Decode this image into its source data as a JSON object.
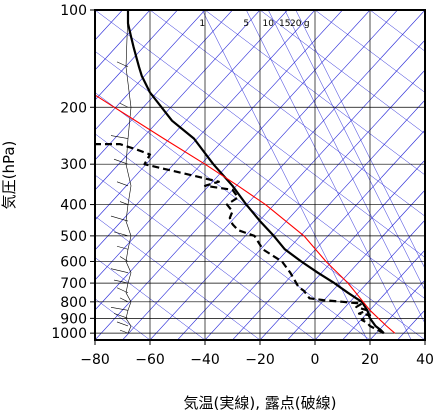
{
  "chart_data": {
    "type": "line",
    "title": "",
    "xlabel": "気温(実線), 露点(破線)",
    "ylabel": "気圧(hPa)",
    "xlim": [
      -80,
      40
    ],
    "ylim_hpa": [
      1050,
      100
    ],
    "y_scale": "log",
    "x_ticks": [
      "−80",
      "−60",
      "−40",
      "−20",
      "0",
      "20",
      "40"
    ],
    "y_ticks": [
      {
        "p": 100,
        "label": "100"
      },
      {
        "p": 200,
        "label": "200"
      },
      {
        "p": 300,
        "label": "300"
      },
      {
        "p": 400,
        "label": "400"
      },
      {
        "p": 500,
        "label": "500"
      },
      {
        "p": 600,
        "label": "600"
      },
      {
        "p": 700,
        "label": "700"
      },
      {
        "p": 800,
        "label": "800"
      },
      {
        "p": 900,
        "label": "900"
      },
      {
        "p": 1000,
        "label": "1000"
      }
    ],
    "mixing_ratio_labels": [
      {
        "text": "1",
        "x": -41
      },
      {
        "text": "5",
        "x": -25
      },
      {
        "text": "10",
        "x": -17
      },
      {
        "text": "15",
        "x": -11
      },
      {
        "text": "20",
        "x": -7
      },
      {
        "text": "g",
        "x": -3
      }
    ],
    "series": [
      {
        "style": "solid",
        "color": "#000000",
        "points": [
          [
            25,
            1000
          ],
          [
            24,
            980
          ],
          [
            22,
            950
          ],
          [
            20,
            900
          ],
          [
            19,
            850
          ],
          [
            17,
            800
          ],
          [
            15,
            780
          ],
          [
            12,
            750
          ],
          [
            7,
            700
          ],
          [
            1,
            650
          ],
          [
            -5,
            600
          ],
          [
            -11,
            550
          ],
          [
            -15,
            500
          ],
          [
            -20,
            450
          ],
          [
            -25,
            400
          ],
          [
            -30,
            350
          ],
          [
            -37,
            300
          ],
          [
            -44,
            250
          ],
          [
            -52,
            220
          ],
          [
            -60,
            180
          ],
          [
            -63,
            160
          ],
          [
            -64,
            150
          ],
          [
            -66,
            130
          ],
          [
            -67,
            120
          ],
          [
            -68,
            110
          ],
          [
            -68,
            100
          ]
        ]
      },
      {
        "style": "dashed",
        "color": "#000000",
        "points": [
          [
            25,
            1000
          ],
          [
            23,
            980
          ],
          [
            20,
            950
          ],
          [
            19,
            930
          ],
          [
            17,
            910
          ],
          [
            20,
            880
          ],
          [
            16,
            870
          ],
          [
            19,
            850
          ],
          [
            15,
            830
          ],
          [
            17,
            810
          ],
          [
            10,
            800
          ],
          [
            3,
            790
          ],
          [
            -2,
            780
          ],
          [
            -4,
            740
          ],
          [
            -6,
            720
          ],
          [
            -9,
            650
          ],
          [
            -12,
            600
          ],
          [
            -19,
            550
          ],
          [
            -22,
            500
          ],
          [
            -28,
            480
          ],
          [
            -30,
            460
          ],
          [
            -31,
            440
          ],
          [
            -30,
            420
          ],
          [
            -32,
            400
          ],
          [
            -28,
            380
          ],
          [
            -30,
            360
          ],
          [
            -40,
            350
          ],
          [
            -35,
            340
          ],
          [
            -48,
            320
          ],
          [
            -55,
            310
          ],
          [
            -62,
            300
          ],
          [
            -60,
            280
          ],
          [
            -65,
            270
          ],
          [
            -71,
            260
          ],
          [
            -82,
            260
          ],
          [
            -80,
            255
          ]
        ]
      },
      {
        "style": "solid",
        "color": "#ff0000",
        "points": [
          [
            29,
            1000
          ],
          [
            26,
            950
          ],
          [
            20,
            850
          ],
          [
            12,
            700
          ],
          [
            4,
            600
          ],
          [
            -4,
            500
          ],
          [
            -18,
            400
          ],
          [
            -28,
            350
          ],
          [
            -40,
            300
          ],
          [
            -55,
            250
          ],
          [
            -73,
            200
          ],
          [
            -86,
            170
          ]
        ]
      }
    ],
    "wind_profile_pressures_hpa": [
      1000,
      950,
      900,
      850,
      800,
      750,
      700,
      650,
      600,
      550,
      500,
      450,
      400,
      350,
      300,
      250,
      200,
      150,
      100
    ],
    "colors": {
      "isotherm_adiabat": "#2a2ad8",
      "grid": "#000000",
      "moist_adiabat_reference": "#ff0000"
    }
  }
}
